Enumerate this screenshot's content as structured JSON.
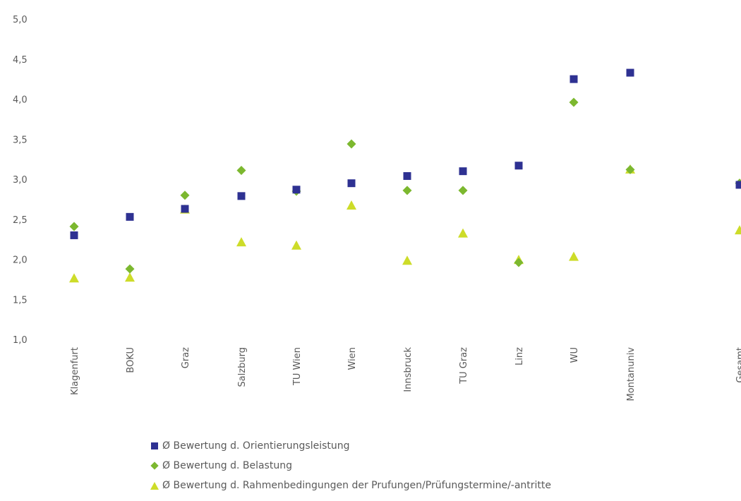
{
  "chart_data": {
    "type": "scatter",
    "categories": [
      "Klagenfurt",
      "BOKU",
      "Graz",
      "Salzburg",
      "TU Wien",
      "Wien",
      "Innsbruck",
      "TU Graz",
      "Linz",
      "WU",
      "Montanuniv",
      "Gesamt"
    ],
    "category_labels": [
      "Klagenfurt",
      "BOKU",
      "Graz",
      "Salzburg",
      "TU Wien",
      "Wien",
      "Innsbruck",
      "TU Graz",
      "Linz",
      "WU",
      "Montanuniv",
      "Gesamt"
    ],
    "series": [
      {
        "name": "Ø Bewertung d. Orientierungsleistung",
        "marker": "square",
        "color": "#2e3192",
        "values": [
          2.3,
          2.53,
          2.63,
          2.79,
          2.87,
          2.95,
          3.04,
          3.1,
          3.17,
          4.25,
          4.33,
          2.93
        ]
      },
      {
        "name": "Ø Bewertung d. Belastung",
        "marker": "diamond",
        "color": "#7cb82f",
        "values": [
          2.41,
          1.88,
          2.8,
          3.11,
          2.85,
          3.44,
          2.86,
          2.86,
          1.96,
          3.96,
          3.12,
          2.95
        ]
      },
      {
        "name": "Ø Bewertung d. Rahmenbedingungen der Prufungen/Prüfungstermine/-antritte",
        "marker": "triangle",
        "color": "#cddc29",
        "values": [
          1.76,
          1.77,
          2.62,
          2.21,
          2.17,
          2.67,
          1.98,
          2.32,
          1.99,
          2.03,
          3.12,
          2.36
        ]
      }
    ],
    "y_ticks": [
      "5,0",
      "4,5",
      "4,0",
      "3,5",
      "3,0",
      "2,5",
      "2,0",
      "1,5",
      "1,0"
    ],
    "ylim": [
      1.0,
      5.0
    ],
    "grid": false,
    "legend_position": "bottom-left"
  }
}
